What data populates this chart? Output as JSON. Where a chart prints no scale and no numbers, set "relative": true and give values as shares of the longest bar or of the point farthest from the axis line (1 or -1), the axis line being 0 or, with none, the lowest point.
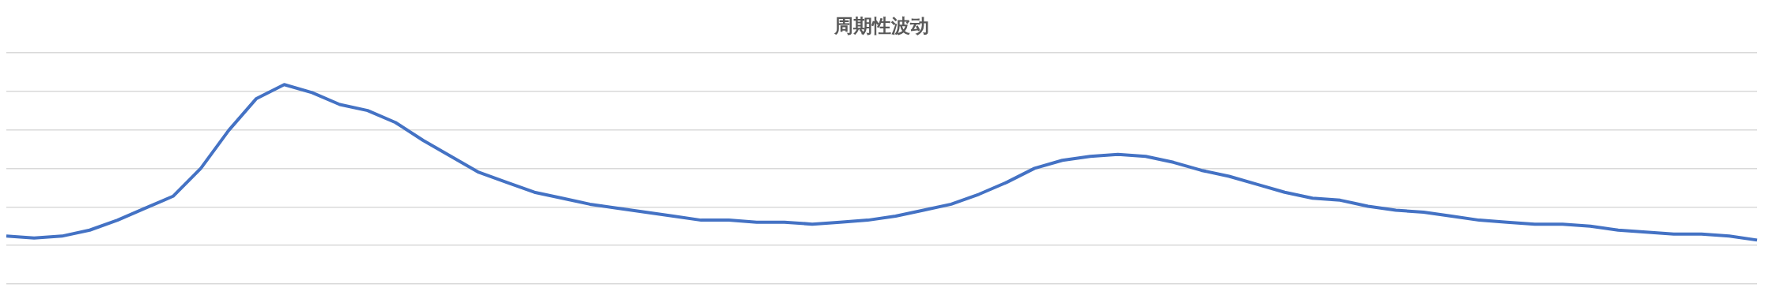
{
  "chart_data": {
    "type": "line",
    "title": "周期性波动",
    "relative": true,
    "grid": "y",
    "marker": "none",
    "line_style": "solid",
    "categories": [
      null,
      null,
      null,
      null,
      null,
      null,
      null,
      null,
      null,
      null,
      null,
      null,
      null,
      null,
      null,
      null,
      null,
      null,
      null,
      null,
      null,
      null,
      null,
      null,
      null,
      null,
      null,
      null,
      null,
      null,
      null,
      null,
      null,
      null,
      null,
      null,
      null,
      null,
      null,
      null,
      null,
      null,
      null,
      null,
      null,
      null,
      null,
      null,
      null,
      null,
      null,
      null,
      null,
      null,
      null,
      null,
      null,
      null,
      null,
      null,
      null,
      null,
      null,
      null
    ],
    "series": [
      {
        "color": "#4472c4",
        "values": [
          0.24,
          0.23,
          0.24,
          0.27,
          0.32,
          0.38,
          0.44,
          0.58,
          0.77,
          0.93,
          1,
          0.96,
          0.9,
          0.87,
          0.81,
          0.72,
          0.64,
          0.56,
          0.51,
          0.46,
          0.43,
          0.4,
          0.38,
          0.36,
          0.34,
          0.32,
          0.32,
          0.31,
          0.31,
          0.3,
          0.31,
          0.32,
          0.34,
          0.37,
          0.4,
          0.45,
          0.51,
          0.58,
          0.62,
          0.64,
          0.65,
          0.64,
          0.61,
          0.57,
          0.54,
          0.5,
          0.46,
          0.43,
          0.42,
          0.39,
          0.37,
          0.36,
          0.34,
          0.32,
          0.31,
          0.3,
          0.3,
          0.29,
          0.27,
          0.26,
          0.25,
          0.25,
          0.24,
          0.22
        ]
      }
    ]
  }
}
